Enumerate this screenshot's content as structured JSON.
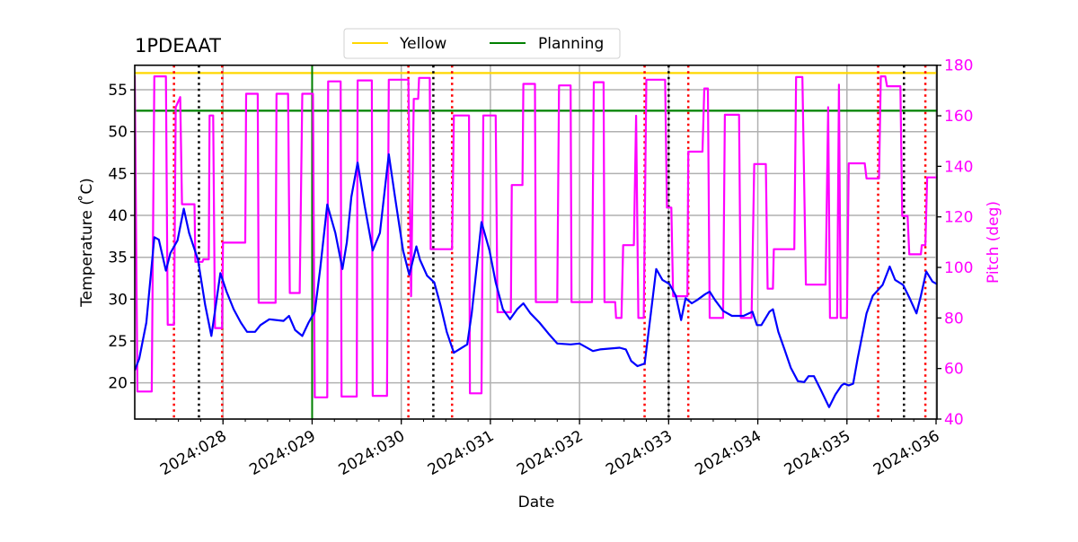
{
  "chart_data": {
    "type": "line",
    "title": "1PDEAAT",
    "xlabel": "Date",
    "ylabel": "Temperature ($^\\circ$C)",
    "ylabel_display": "Temperature ( ̊C)",
    "y2label": "Pitch (deg)",
    "xlim": [
      27.01,
      36.01
    ],
    "ylim": [
      15.68,
      57.93
    ],
    "y2lim": [
      40,
      180
    ],
    "grid": true,
    "legend_placement": "top-center",
    "x_ticks": [
      {
        "value": 28,
        "label": "2024:028"
      },
      {
        "value": 29,
        "label": "2024:029"
      },
      {
        "value": 30,
        "label": "2024:030"
      },
      {
        "value": 31,
        "label": "2024:031"
      },
      {
        "value": 32,
        "label": "2024:032"
      },
      {
        "value": 33,
        "label": "2024:033"
      },
      {
        "value": 34,
        "label": "2024:034"
      },
      {
        "value": 35,
        "label": "2024:035"
      },
      {
        "value": 36,
        "label": "2024:036"
      }
    ],
    "x_minor_step": 0.25,
    "y_ticks": [
      20,
      25,
      30,
      35,
      40,
      45,
      50,
      55
    ],
    "y2_ticks": [
      40,
      60,
      80,
      100,
      120,
      140,
      160,
      180
    ],
    "colors": {
      "temperature": "#0000ff",
      "pitch": "#ff00ff",
      "yellow": "#ffd700",
      "planning": "#008000",
      "red_markers": "#ff0000",
      "black_markers": "#000000",
      "grid": "#b0b0b0",
      "pitch_axis": "#ff00ff"
    },
    "limits": [
      {
        "name": "Yellow",
        "value": 57.0,
        "color": "#ffd700"
      },
      {
        "name": "Planning",
        "value": 52.5,
        "color": "#008000"
      }
    ],
    "vertical_lines": [
      {
        "x": 27.45,
        "style": "dotted",
        "color": "#ff0000"
      },
      {
        "x": 27.73,
        "style": "dotted",
        "color": "#000000"
      },
      {
        "x": 27.99,
        "style": "dotted",
        "color": "#ff0000"
      },
      {
        "x": 29.0,
        "style": "solid",
        "color": "#008000"
      },
      {
        "x": 30.08,
        "style": "dotted",
        "color": "#ff0000"
      },
      {
        "x": 30.36,
        "style": "dotted",
        "color": "#000000"
      },
      {
        "x": 30.57,
        "style": "dotted",
        "color": "#ff0000"
      },
      {
        "x": 32.73,
        "style": "dotted",
        "color": "#ff0000"
      },
      {
        "x": 33.0,
        "style": "dotted",
        "color": "#000000"
      },
      {
        "x": 33.22,
        "style": "dotted",
        "color": "#ff0000"
      },
      {
        "x": 35.35,
        "style": "dotted",
        "color": "#ff0000"
      },
      {
        "x": 35.64,
        "style": "dotted",
        "color": "#000000"
      },
      {
        "x": 35.88,
        "style": "dotted",
        "color": "#ff0000"
      }
    ],
    "series": [
      {
        "axis": "left",
        "color": "#0000ff",
        "points": [
          [
            27.01,
            21.5
          ],
          [
            27.06,
            22.9
          ],
          [
            27.14,
            27.2
          ],
          [
            27.23,
            37.4
          ],
          [
            27.28,
            37.1
          ],
          [
            27.36,
            33.4
          ],
          [
            27.41,
            35.5
          ],
          [
            27.49,
            37.0
          ],
          [
            27.56,
            40.8
          ],
          [
            27.62,
            37.9
          ],
          [
            27.72,
            34.7
          ],
          [
            27.8,
            29.3
          ],
          [
            27.87,
            25.6
          ],
          [
            27.92,
            29.3
          ],
          [
            27.97,
            33.1
          ],
          [
            28.04,
            30.9
          ],
          [
            28.12,
            28.8
          ],
          [
            28.2,
            27.2
          ],
          [
            28.27,
            26.1
          ],
          [
            28.36,
            26.1
          ],
          [
            28.42,
            26.9
          ],
          [
            28.52,
            27.6
          ],
          [
            28.68,
            27.4
          ],
          [
            28.74,
            28.0
          ],
          [
            28.81,
            26.3
          ],
          [
            28.89,
            25.6
          ],
          [
            28.96,
            27.2
          ],
          [
            29.03,
            28.5
          ],
          [
            29.09,
            33.6
          ],
          [
            29.17,
            41.3
          ],
          [
            29.26,
            37.9
          ],
          [
            29.34,
            33.6
          ],
          [
            29.39,
            36.8
          ],
          [
            29.44,
            42.2
          ],
          [
            29.51,
            46.3
          ],
          [
            29.59,
            41.1
          ],
          [
            29.68,
            35.8
          ],
          [
            29.76,
            37.9
          ],
          [
            29.86,
            47.3
          ],
          [
            29.93,
            42.2
          ],
          [
            30.02,
            35.8
          ],
          [
            30.09,
            32.9
          ],
          [
            30.17,
            36.3
          ],
          [
            30.21,
            34.7
          ],
          [
            30.29,
            32.8
          ],
          [
            30.37,
            32.0
          ],
          [
            30.44,
            29.3
          ],
          [
            30.51,
            26.1
          ],
          [
            30.59,
            23.6
          ],
          [
            30.74,
            24.6
          ],
          [
            30.79,
            28.3
          ],
          [
            30.9,
            39.2
          ],
          [
            30.99,
            35.8
          ],
          [
            31.06,
            32.0
          ],
          [
            31.14,
            28.8
          ],
          [
            31.22,
            27.6
          ],
          [
            31.3,
            28.8
          ],
          [
            31.37,
            29.5
          ],
          [
            31.45,
            28.3
          ],
          [
            31.55,
            27.2
          ],
          [
            31.65,
            25.9
          ],
          [
            31.75,
            24.7
          ],
          [
            31.9,
            24.6
          ],
          [
            32.0,
            24.7
          ],
          [
            32.15,
            23.8
          ],
          [
            32.23,
            24.0
          ],
          [
            32.45,
            24.2
          ],
          [
            32.52,
            24.0
          ],
          [
            32.58,
            22.6
          ],
          [
            32.65,
            22.0
          ],
          [
            32.73,
            22.3
          ],
          [
            32.8,
            28.3
          ],
          [
            32.86,
            33.6
          ],
          [
            32.93,
            32.3
          ],
          [
            33.01,
            31.8
          ],
          [
            33.08,
            30.4
          ],
          [
            33.14,
            27.5
          ],
          [
            33.19,
            30.1
          ],
          [
            33.26,
            29.5
          ],
          [
            33.32,
            29.9
          ],
          [
            33.41,
            30.6
          ],
          [
            33.46,
            30.9
          ],
          [
            33.52,
            29.9
          ],
          [
            33.61,
            28.6
          ],
          [
            33.71,
            28.0
          ],
          [
            33.84,
            28.0
          ],
          [
            33.94,
            28.5
          ],
          [
            33.99,
            26.9
          ],
          [
            34.04,
            26.9
          ],
          [
            34.13,
            28.5
          ],
          [
            34.17,
            28.8
          ],
          [
            34.23,
            26.1
          ],
          [
            34.3,
            24.0
          ],
          [
            34.37,
            21.8
          ],
          [
            34.45,
            20.2
          ],
          [
            34.52,
            20.1
          ],
          [
            34.57,
            20.8
          ],
          [
            34.63,
            20.8
          ],
          [
            34.71,
            19.1
          ],
          [
            34.8,
            17.1
          ],
          [
            34.87,
            18.6
          ],
          [
            34.94,
            19.7
          ],
          [
            34.97,
            19.9
          ],
          [
            35.02,
            19.7
          ],
          [
            35.07,
            19.9
          ],
          [
            35.12,
            22.9
          ],
          [
            35.22,
            28.3
          ],
          [
            35.29,
            30.4
          ],
          [
            35.4,
            31.7
          ],
          [
            35.48,
            33.9
          ],
          [
            35.54,
            32.3
          ],
          [
            35.63,
            31.7
          ],
          [
            35.7,
            30.2
          ],
          [
            35.78,
            28.3
          ],
          [
            35.83,
            30.4
          ],
          [
            35.89,
            33.3
          ],
          [
            35.96,
            32.1
          ],
          [
            36.01,
            31.8
          ]
        ]
      },
      {
        "axis": "right",
        "color": "#ff00ff",
        "points": [
          [
            27.01,
            176
          ],
          [
            27.04,
            50.9
          ],
          [
            27.2,
            50.9
          ],
          [
            27.23,
            175.6
          ],
          [
            27.36,
            175.6
          ],
          [
            27.38,
            77.3
          ],
          [
            27.45,
            77.3
          ],
          [
            27.47,
            163.4
          ],
          [
            27.52,
            167.4
          ],
          [
            27.54,
            125
          ],
          [
            27.68,
            125
          ],
          [
            27.69,
            102.2
          ],
          [
            27.77,
            102.2
          ],
          [
            27.78,
            103.2
          ],
          [
            27.84,
            103.2
          ],
          [
            27.85,
            160.1
          ],
          [
            27.89,
            160.1
          ],
          [
            27.91,
            76
          ],
          [
            27.99,
            76
          ],
          [
            28.0,
            109.8
          ],
          [
            28.25,
            109.8
          ],
          [
            28.26,
            168.7
          ],
          [
            28.39,
            168.7
          ],
          [
            28.4,
            86
          ],
          [
            28.59,
            86
          ],
          [
            28.6,
            168.7
          ],
          [
            28.73,
            168.7
          ],
          [
            28.75,
            89.9
          ],
          [
            28.86,
            89.9
          ],
          [
            28.89,
            168.7
          ],
          [
            29.01,
            168.7
          ],
          [
            29.03,
            48.6
          ],
          [
            29.17,
            48.6
          ],
          [
            29.18,
            173.6
          ],
          [
            29.32,
            173.6
          ],
          [
            29.33,
            48.9
          ],
          [
            29.5,
            48.9
          ],
          [
            29.51,
            174
          ],
          [
            29.67,
            174
          ],
          [
            29.68,
            49.2
          ],
          [
            29.84,
            49.2
          ],
          [
            29.86,
            174.3
          ],
          [
            30.08,
            174.3
          ],
          [
            30.11,
            88.6
          ],
          [
            30.14,
            166.7
          ],
          [
            30.19,
            166.7
          ],
          [
            30.2,
            175
          ],
          [
            30.32,
            175
          ],
          [
            30.33,
            107.2
          ],
          [
            30.57,
            107.2
          ],
          [
            30.59,
            160.1
          ],
          [
            30.76,
            160.1
          ],
          [
            30.77,
            50.2
          ],
          [
            30.9,
            50.2
          ],
          [
            30.92,
            160.1
          ],
          [
            31.06,
            160.1
          ],
          [
            31.08,
            82.3
          ],
          [
            31.23,
            82.3
          ],
          [
            31.24,
            132.6
          ],
          [
            31.36,
            132.6
          ],
          [
            31.37,
            172.6
          ],
          [
            31.5,
            172.6
          ],
          [
            31.51,
            86.3
          ],
          [
            31.75,
            86.3
          ],
          [
            31.77,
            172
          ],
          [
            31.9,
            172
          ],
          [
            31.91,
            86.3
          ],
          [
            32.14,
            86.3
          ],
          [
            32.16,
            173.3
          ],
          [
            32.27,
            173.3
          ],
          [
            32.28,
            86.3
          ],
          [
            32.4,
            86.3
          ],
          [
            32.41,
            80
          ],
          [
            32.47,
            80
          ],
          [
            32.49,
            108.8
          ],
          [
            32.61,
            108.8
          ],
          [
            32.635,
            160
          ],
          [
            32.66,
            80
          ],
          [
            32.72,
            80
          ],
          [
            32.75,
            174.3
          ],
          [
            32.96,
            174.3
          ],
          [
            32.98,
            123.7
          ],
          [
            33.03,
            123.7
          ],
          [
            33.05,
            88.6
          ],
          [
            33.21,
            88.6
          ],
          [
            33.22,
            145.8
          ],
          [
            33.38,
            145.8
          ],
          [
            33.4,
            170.8
          ],
          [
            33.44,
            170.8
          ],
          [
            33.46,
            80
          ],
          [
            33.61,
            80
          ],
          [
            33.63,
            160.4
          ],
          [
            33.79,
            160.4
          ],
          [
            33.81,
            80
          ],
          [
            33.93,
            80
          ],
          [
            33.96,
            140.9
          ],
          [
            34.09,
            140.9
          ],
          [
            34.11,
            91.6
          ],
          [
            34.17,
            91.6
          ],
          [
            34.18,
            107.2
          ],
          [
            34.41,
            107.2
          ],
          [
            34.43,
            175.3
          ],
          [
            34.5,
            175.3
          ],
          [
            34.54,
            93.2
          ],
          [
            34.76,
            93.2
          ],
          [
            34.79,
            163.4
          ],
          [
            34.81,
            80
          ],
          [
            34.89,
            80
          ],
          [
            34.91,
            172.3
          ],
          [
            34.93,
            80
          ],
          [
            35.0,
            80
          ],
          [
            35.02,
            141.2
          ],
          [
            35.2,
            141.2
          ],
          [
            35.22,
            135.2
          ],
          [
            35.36,
            135.2
          ],
          [
            35.38,
            175.6
          ],
          [
            35.43,
            175.6
          ],
          [
            35.45,
            171.7
          ],
          [
            35.6,
            171.7
          ],
          [
            35.62,
            120.4
          ],
          [
            35.68,
            120.4
          ],
          [
            35.7,
            105.2
          ],
          [
            35.83,
            105.2
          ],
          [
            35.84,
            108.8
          ],
          [
            35.88,
            108.8
          ],
          [
            35.9,
            135.6
          ],
          [
            36.01,
            135.6
          ]
        ]
      }
    ]
  }
}
